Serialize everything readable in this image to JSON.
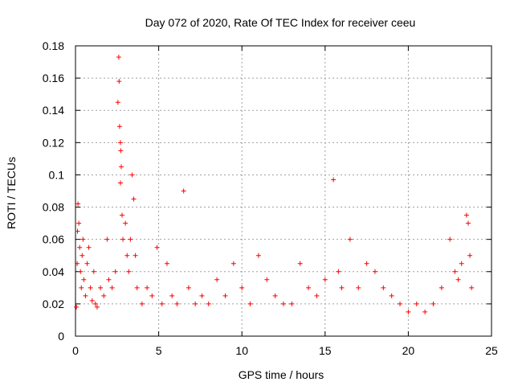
{
  "chart_data": {
    "type": "scatter",
    "title": "Day 072 of 2020, Rate Of TEC Index for receiver ceeu",
    "xlabel": "GPS time / hours",
    "ylabel": "ROTI / TECUs",
    "xlim": [
      0,
      25
    ],
    "ylim": [
      0,
      0.18
    ],
    "x_ticks": [
      0,
      5,
      10,
      15,
      20,
      25
    ],
    "x_tick_labels": [
      "0",
      "5",
      "10",
      "15",
      "20",
      "25"
    ],
    "y_ticks": [
      0,
      0.02,
      0.04,
      0.06,
      0.08,
      0.1,
      0.12,
      0.14,
      0.16,
      0.18
    ],
    "y_tick_labels": [
      "0",
      "0.02",
      "0.04",
      "0.06",
      "0.08",
      "0.1",
      "0.12",
      "0.14",
      "0.16",
      "0.18"
    ],
    "grid": true,
    "marker": "+",
    "series": [
      {
        "color": "#ff0000",
        "points": [
          [
            0.05,
            0.018
          ],
          [
            0.1,
            0.045
          ],
          [
            0.12,
            0.065
          ],
          [
            0.15,
            0.082
          ],
          [
            0.2,
            0.07
          ],
          [
            0.25,
            0.055
          ],
          [
            0.3,
            0.04
          ],
          [
            0.35,
            0.03
          ],
          [
            0.4,
            0.05
          ],
          [
            0.45,
            0.06
          ],
          [
            0.5,
            0.035
          ],
          [
            0.6,
            0.025
          ],
          [
            0.7,
            0.045
          ],
          [
            0.8,
            0.055
          ],
          [
            0.9,
            0.03
          ],
          [
            1.0,
            0.022
          ],
          [
            1.1,
            0.04
          ],
          [
            1.2,
            0.02
          ],
          [
            1.3,
            0.018
          ],
          [
            1.5,
            0.03
          ],
          [
            1.7,
            0.025
          ],
          [
            1.9,
            0.06
          ],
          [
            2.0,
            0.035
          ],
          [
            2.2,
            0.03
          ],
          [
            2.4,
            0.04
          ],
          [
            2.55,
            0.145
          ],
          [
            2.6,
            0.173
          ],
          [
            2.62,
            0.158
          ],
          [
            2.65,
            0.13
          ],
          [
            2.7,
            0.12
          ],
          [
            2.72,
            0.115
          ],
          [
            2.75,
            0.105
          ],
          [
            2.7,
            0.095
          ],
          [
            2.8,
            0.075
          ],
          [
            2.85,
            0.06
          ],
          [
            3.0,
            0.07
          ],
          [
            3.1,
            0.05
          ],
          [
            3.2,
            0.04
          ],
          [
            3.3,
            0.06
          ],
          [
            3.4,
            0.1
          ],
          [
            3.5,
            0.085
          ],
          [
            3.6,
            0.05
          ],
          [
            3.7,
            0.03
          ],
          [
            4.0,
            0.02
          ],
          [
            4.3,
            0.03
          ],
          [
            4.6,
            0.025
          ],
          [
            4.9,
            0.055
          ],
          [
            5.2,
            0.02
          ],
          [
            5.5,
            0.045
          ],
          [
            5.8,
            0.025
          ],
          [
            6.1,
            0.02
          ],
          [
            6.5,
            0.09
          ],
          [
            6.8,
            0.03
          ],
          [
            7.2,
            0.02
          ],
          [
            7.6,
            0.025
          ],
          [
            8.0,
            0.02
          ],
          [
            8.5,
            0.035
          ],
          [
            9.0,
            0.025
          ],
          [
            9.5,
            0.045
          ],
          [
            10.0,
            0.03
          ],
          [
            10.5,
            0.02
          ],
          [
            11.0,
            0.05
          ],
          [
            11.5,
            0.035
          ],
          [
            12.0,
            0.025
          ],
          [
            12.5,
            0.02
          ],
          [
            13.0,
            0.02
          ],
          [
            13.5,
            0.045
          ],
          [
            14.0,
            0.03
          ],
          [
            14.5,
            0.025
          ],
          [
            15.0,
            0.035
          ],
          [
            15.5,
            0.097
          ],
          [
            15.8,
            0.04
          ],
          [
            16.0,
            0.03
          ],
          [
            16.5,
            0.06
          ],
          [
            17.0,
            0.03
          ],
          [
            17.5,
            0.045
          ],
          [
            18.0,
            0.04
          ],
          [
            18.5,
            0.03
          ],
          [
            19.0,
            0.025
          ],
          [
            19.5,
            0.02
          ],
          [
            20.0,
            0.015
          ],
          [
            20.5,
            0.02
          ],
          [
            21.0,
            0.015
          ],
          [
            21.5,
            0.02
          ],
          [
            22.0,
            0.03
          ],
          [
            22.5,
            0.06
          ],
          [
            22.8,
            0.04
          ],
          [
            23.0,
            0.035
          ],
          [
            23.2,
            0.045
          ],
          [
            23.5,
            0.075
          ],
          [
            23.6,
            0.07
          ],
          [
            23.7,
            0.05
          ],
          [
            23.8,
            0.03
          ]
        ]
      }
    ]
  }
}
